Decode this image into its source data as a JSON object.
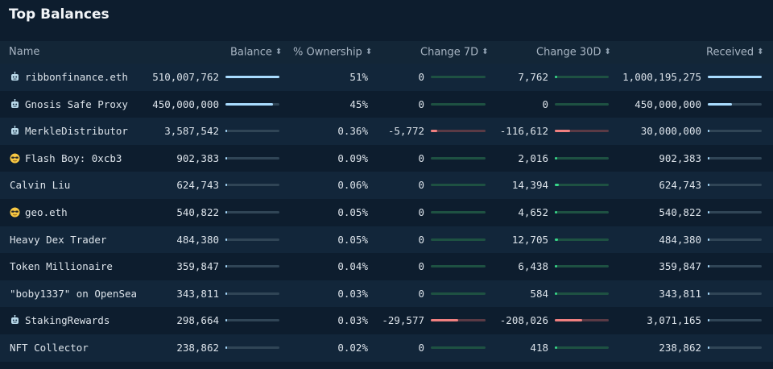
{
  "title": "Top Balances",
  "columns": {
    "name": "Name",
    "balance": "Balance",
    "ownership": "% Ownership",
    "change7d": "Change 7D",
    "change30d": "Change 30D",
    "received": "Received"
  },
  "colors": {
    "background": "#0d1d2e",
    "bar_fill": "#a9dcff",
    "change_positive": "#37d58a",
    "change_negative": "#f08080"
  },
  "rows": [
    {
      "icon": "robot-icon",
      "name": "ribbonfinance.eth",
      "balance": "510,007,762",
      "balance_frac": 1.0,
      "ownership": "51%",
      "change7d": "0",
      "c7_frac": 0,
      "change30d": "7,762",
      "c30_frac": 0.03,
      "received": "1,000,195,275",
      "received_frac": 1.0
    },
    {
      "icon": "robot-icon",
      "name": "Gnosis Safe Proxy",
      "balance": "450,000,000",
      "balance_frac": 0.88,
      "ownership": "45%",
      "change7d": "0",
      "c7_frac": 0,
      "change30d": "0",
      "c30_frac": 0,
      "received": "450,000,000",
      "received_frac": 0.45
    },
    {
      "icon": "robot-icon",
      "name": "MerkleDistributor",
      "balance": "3,587,542",
      "balance_frac": 0.01,
      "ownership": "0.36%",
      "change7d": "-5,772",
      "c7_frac": -0.2,
      "change30d": "-116,612",
      "c30_frac": -0.56,
      "received": "30,000,000",
      "received_frac": 0.03
    },
    {
      "icon": "sunglasses-face-icon",
      "name": "Flash Boy: 0xcb3",
      "balance": "902,383",
      "balance_frac": 0.005,
      "ownership": "0.09%",
      "change7d": "0",
      "c7_frac": 0,
      "change30d": "2,016",
      "c30_frac": 0.01,
      "received": "902,383",
      "received_frac": 0.002
    },
    {
      "icon": "",
      "name": "Calvin Liu",
      "balance": "624,743",
      "balance_frac": 0.004,
      "ownership": "0.06%",
      "change7d": "0",
      "c7_frac": 0,
      "change30d": "14,394",
      "c30_frac": 0.07,
      "received": "624,743",
      "received_frac": 0.001
    },
    {
      "icon": "sunglasses-face-icon",
      "name": "geo.eth",
      "balance": "540,822",
      "balance_frac": 0.003,
      "ownership": "0.05%",
      "change7d": "0",
      "c7_frac": 0,
      "change30d": "4,652",
      "c30_frac": 0.02,
      "received": "540,822",
      "received_frac": 0.001
    },
    {
      "icon": "",
      "name": "Heavy Dex Trader",
      "balance": "484,380",
      "balance_frac": 0.003,
      "ownership": "0.05%",
      "change7d": "0",
      "c7_frac": 0,
      "change30d": "12,705",
      "c30_frac": 0.06,
      "received": "484,380",
      "received_frac": 0.001
    },
    {
      "icon": "",
      "name": "Token Millionaire",
      "balance": "359,847",
      "balance_frac": 0.002,
      "ownership": "0.04%",
      "change7d": "0",
      "c7_frac": 0,
      "change30d": "6,438",
      "c30_frac": 0.03,
      "received": "359,847",
      "received_frac": 0.001
    },
    {
      "icon": "",
      "name": "\"boby1337\" on OpenSea",
      "balance": "343,811",
      "balance_frac": 0.002,
      "ownership": "0.03%",
      "change7d": "0",
      "c7_frac": 0,
      "change30d": "584",
      "c30_frac": 0.003,
      "received": "343,811",
      "received_frac": 0.001
    },
    {
      "icon": "robot-icon",
      "name": "StakingRewards",
      "balance": "298,664",
      "balance_frac": 0.002,
      "ownership": "0.03%",
      "change7d": "-29,577",
      "c7_frac": -1.0,
      "change30d": "-208,026",
      "c30_frac": -1.0,
      "received": "3,071,165",
      "received_frac": 0.003
    },
    {
      "icon": "",
      "name": "NFT Collector",
      "balance": "238,862",
      "balance_frac": 0.001,
      "ownership": "0.02%",
      "change7d": "0",
      "c7_frac": 0,
      "change30d": "418",
      "c30_frac": 0.002,
      "received": "238,862",
      "received_frac": 0.001
    }
  ]
}
